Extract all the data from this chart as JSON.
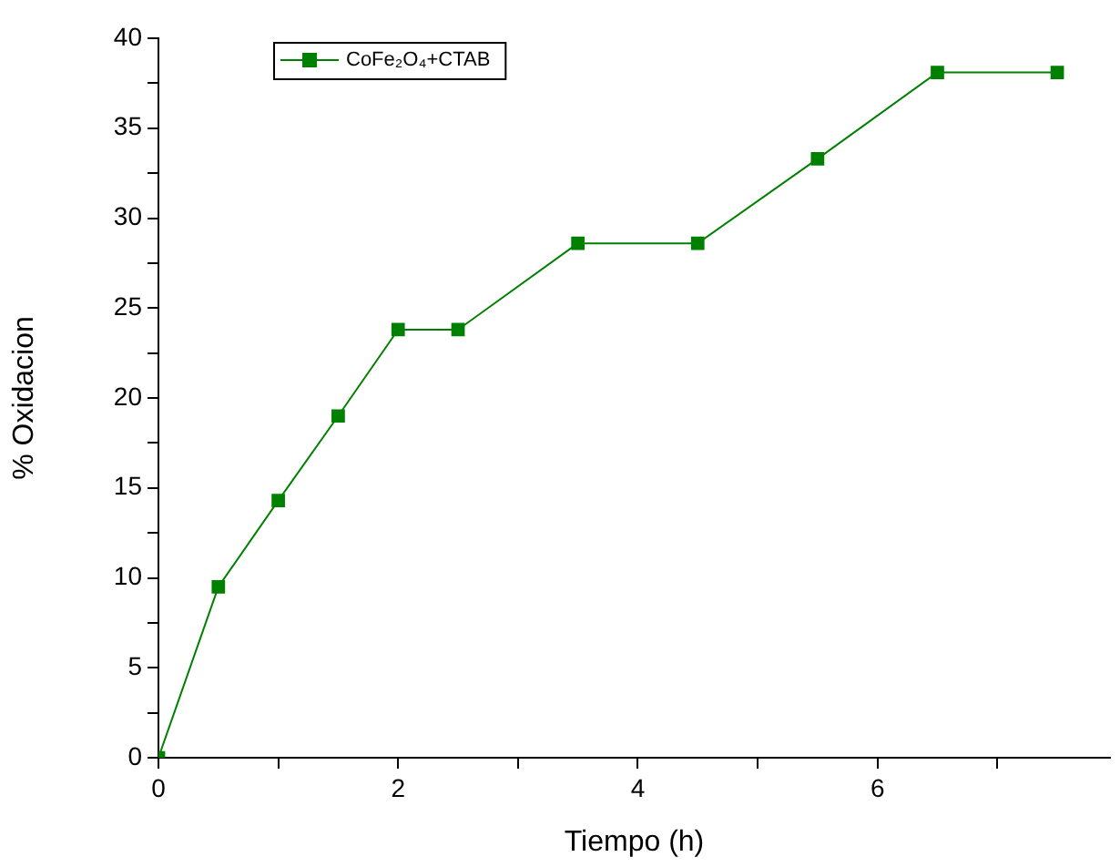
{
  "chart_data": {
    "type": "line",
    "xlabel": "Tiempo (h)",
    "ylabel": "% Oxidacion",
    "x": [
      0,
      0.5,
      1,
      1.5,
      2,
      2.5,
      3.5,
      4.5,
      5.5,
      6.5,
      7.5
    ],
    "series": [
      {
        "name": "CoFe₂O₄+CTAB",
        "color": "#008000",
        "values": [
          0,
          9.5,
          14.3,
          19.0,
          23.8,
          23.8,
          28.6,
          28.6,
          33.3,
          38.1,
          38.1
        ]
      }
    ],
    "xlim": [
      0,
      7.94
    ],
    "xticks": [
      0,
      {
        "value": 1,
        "label": null
      },
      2,
      {
        "value": 3,
        "label": null
      },
      4,
      {
        "value": 5,
        "label": null
      },
      6,
      {
        "value": 7,
        "label": null
      }
    ],
    "ylim": [
      0,
      40
    ],
    "yticks": [
      0,
      {
        "value": 2.5,
        "label": null
      },
      5,
      {
        "value": 7.5,
        "label": null
      },
      10,
      {
        "value": 12.5,
        "label": null
      },
      15,
      {
        "value": 17.5,
        "label": null
      },
      20,
      {
        "value": 22.5,
        "label": null
      },
      25,
      {
        "value": 27.5,
        "label": null
      },
      30,
      {
        "value": 32.5,
        "label": null
      },
      35,
      {
        "value": 37.5,
        "label": null
      },
      40
    ],
    "grid": false,
    "legend": "top left",
    "marker": "square",
    "line_style": "solid"
  }
}
